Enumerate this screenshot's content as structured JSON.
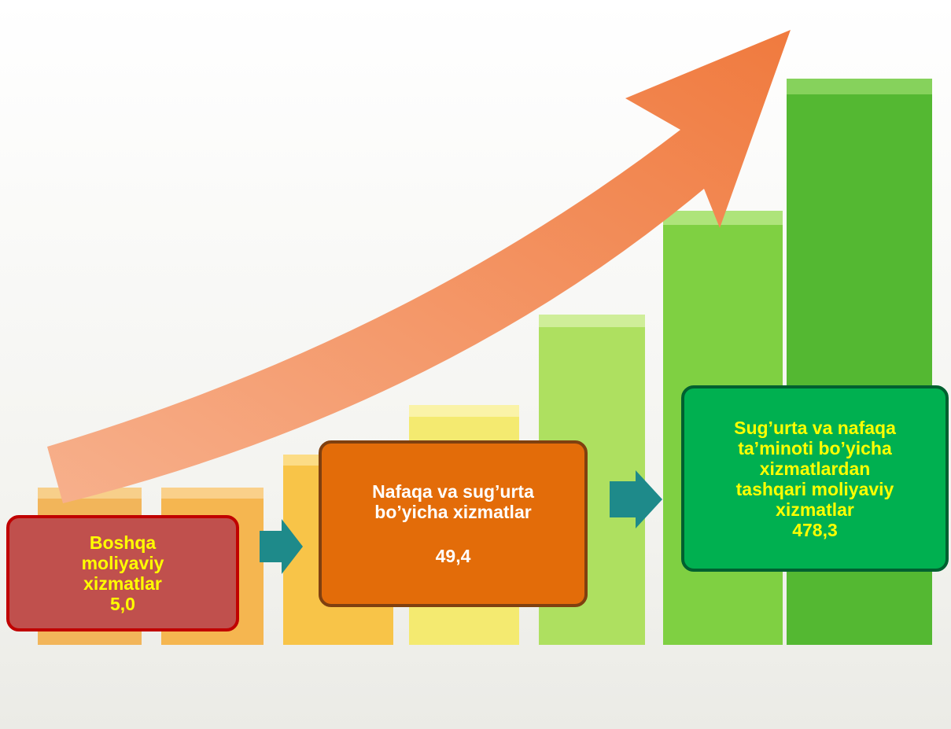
{
  "boxes": [
    {
      "lines": [
        "Boshqa",
        "moliyaviy",
        "xizmatlar",
        "5,0"
      ]
    },
    {
      "lines": [
        "Nafaqa va sug’urta",
        "bo’yicha xizmatlar",
        "49,4"
      ]
    },
    {
      "lines": [
        "Sug’urta va nafaqa",
        "ta’minoti bo’yicha",
        "xizmatlardan",
        "tashqari moliyaviy",
        "xizmatlar",
        "478,3"
      ]
    }
  ]
}
